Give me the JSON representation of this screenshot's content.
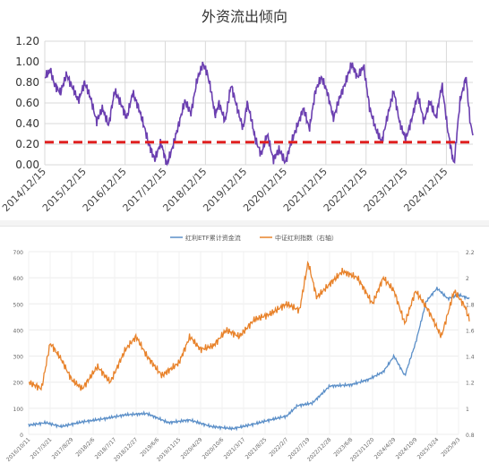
{
  "chart_data": [
    {
      "type": "line",
      "title": "外资流出倾向",
      "ylim": [
        0,
        1.2
      ],
      "y_ticks": [
        "1.20",
        "1.00",
        "0.80",
        "0.60",
        "0.40",
        "0.20",
        "0.00"
      ],
      "x_ticks": [
        "2014/12/15",
        "2015/12/15",
        "2016/12/15",
        "2017/12/15",
        "2018/12/15",
        "2019/12/15",
        "2020/12/15",
        "2021/12/15",
        "2022/12/15",
        "2023/12/15",
        "2024/12/15"
      ],
      "grid": true,
      "threshold": 0.22,
      "colors": {
        "series": "#6b3fb0",
        "threshold": "#e02020"
      },
      "series": [
        {
          "x": [
            2014.96,
            2015.1,
            2015.2,
            2015.35,
            2015.5,
            2015.65,
            2015.8,
            2015.95,
            2016.1,
            2016.25,
            2016.4,
            2016.55,
            2016.7,
            2016.85,
            2017.0,
            2017.15,
            2017.3,
            2017.45,
            2017.55,
            2017.7,
            2017.85,
            2018.0,
            2018.15,
            2018.3,
            2018.45,
            2018.6,
            2018.75,
            2018.9,
            2019.0,
            2019.1,
            2019.2,
            2019.3,
            2019.45,
            2019.6,
            2019.75,
            2019.9,
            2020.0,
            2020.1,
            2020.2,
            2020.35,
            2020.5,
            2020.65,
            2020.8,
            2020.95,
            2021.1,
            2021.25,
            2021.4,
            2021.55,
            2021.7,
            2021.85,
            2022.0,
            2022.15,
            2022.3,
            2022.45,
            2022.6,
            2022.75,
            2022.9,
            2023.05,
            2023.2,
            2023.35,
            2023.5,
            2023.65,
            2023.8,
            2023.95,
            2024.1,
            2024.25,
            2024.4,
            2024.55,
            2024.7,
            2024.85,
            2025.0,
            2025.15,
            2025.3,
            2025.45,
            2025.55,
            2025.6
          ],
          "y": [
            0.85,
            0.92,
            0.78,
            0.7,
            0.88,
            0.75,
            0.62,
            0.8,
            0.65,
            0.42,
            0.55,
            0.38,
            0.72,
            0.6,
            0.45,
            0.7,
            0.55,
            0.35,
            0.2,
            0.05,
            0.22,
            0.0,
            0.18,
            0.4,
            0.62,
            0.5,
            0.82,
            0.98,
            0.9,
            0.72,
            0.48,
            0.6,
            0.42,
            0.78,
            0.55,
            0.35,
            0.6,
            0.45,
            0.25,
            0.1,
            0.3,
            0.05,
            0.15,
            0.02,
            0.22,
            0.38,
            0.55,
            0.35,
            0.72,
            0.85,
            0.7,
            0.45,
            0.65,
            0.8,
            0.98,
            0.85,
            0.96,
            0.55,
            0.35,
            0.22,
            0.48,
            0.72,
            0.4,
            0.25,
            0.45,
            0.68,
            0.42,
            0.62,
            0.45,
            0.78,
            0.32,
            0.0,
            0.62,
            0.85,
            0.42,
            0.32
          ]
        }
      ]
    },
    {
      "type": "line",
      "title": "",
      "legend": [
        "红利ETF累计资金流",
        "中证红利指数（右轴）"
      ],
      "legend_position": "top",
      "grid": true,
      "y_left_ticks": [
        "700",
        "600",
        "500",
        "400",
        "300",
        "200",
        "100",
        "0"
      ],
      "y_right_ticks": [
        "2.2",
        "2",
        "1.8",
        "1.6",
        "1.4",
        "1.2",
        "1",
        "0.8"
      ],
      "ylim_left": [
        0,
        700
      ],
      "ylim_right": [
        0.8,
        2.2
      ],
      "x_ticks": [
        "2016/10/11",
        "2017/3/21",
        "2017/8/29",
        "2018/2/6",
        "2018/7/17",
        "2018/12/27",
        "2019/6/6",
        "2019/11/15",
        "2020/4/29",
        "2020/10/6",
        "2021/3/17",
        "2021/8/25",
        "2022/2/7",
        "2022/7/19",
        "2022/12/28",
        "2023/6/8",
        "2023/11/20",
        "2024/4/29",
        "2024/10/9",
        "2025/3/24",
        "2025/9/3"
      ],
      "colors": {
        "series_1": "#5b8fc8",
        "series_2": "#e8822a"
      },
      "series": [
        {
          "name": "红利ETF累计资金流",
          "x_index": [
            0,
            0.8,
            1.5,
            2.5,
            3.5,
            4.5,
            5.5,
            6.5,
            7.5,
            8.5,
            9.5,
            10.5,
            11.2,
            12.0,
            12.5,
            13.2,
            14.0,
            15.0,
            15.8,
            16.5,
            17.0,
            17.5,
            18.0,
            18.5,
            19.0,
            19.5,
            20.0,
            20.5
          ],
          "values": [
            35,
            45,
            30,
            48,
            60,
            75,
            80,
            45,
            55,
            30,
            22,
            40,
            55,
            70,
            110,
            120,
            185,
            190,
            210,
            240,
            300,
            225,
            350,
            510,
            560,
            520,
            535,
            520
          ]
        },
        {
          "name": "中证红利指数（右轴）",
          "x_index": [
            0,
            0.6,
            1.0,
            1.5,
            2.0,
            2.5,
            3.2,
            3.8,
            4.5,
            5.0,
            5.5,
            6.2,
            7.0,
            7.5,
            8.0,
            8.6,
            9.2,
            9.8,
            10.5,
            11.2,
            12.0,
            12.6,
            13.0,
            13.4,
            14.0,
            14.6,
            15.3,
            16.0,
            16.5,
            17.0,
            17.5,
            18.0,
            18.6,
            19.2,
            19.8,
            20.3,
            20.5
          ],
          "values": [
            1.2,
            1.15,
            1.5,
            1.38,
            1.22,
            1.15,
            1.32,
            1.2,
            1.45,
            1.55,
            1.4,
            1.25,
            1.35,
            1.55,
            1.45,
            1.48,
            1.6,
            1.55,
            1.68,
            1.72,
            1.8,
            1.75,
            2.12,
            1.85,
            1.95,
            2.05,
            2.0,
            1.8,
            2.0,
            1.9,
            1.65,
            1.9,
            1.75,
            1.55,
            1.9,
            1.78,
            1.68
          ]
        }
      ]
    }
  ]
}
